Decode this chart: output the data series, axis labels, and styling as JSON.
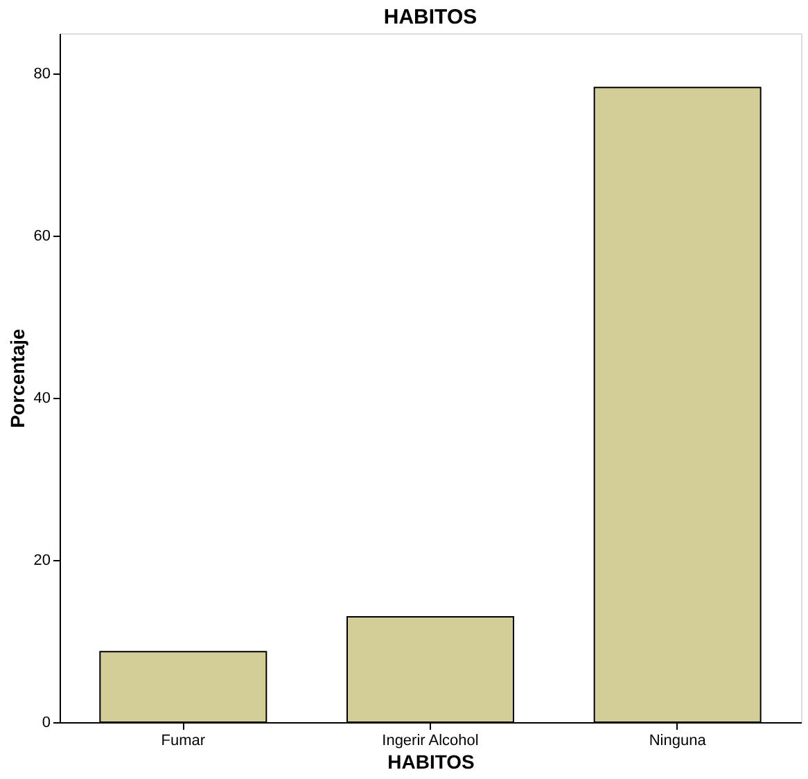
{
  "chart_data": {
    "type": "bar",
    "title": "HABITOS",
    "xlabel": "HABITOS",
    "ylabel": "Porcentaje",
    "categories": [
      "Fumar",
      "Ingerir Alcohol",
      "Ninguna"
    ],
    "values": [
      8.7,
      13.0,
      78.3
    ],
    "color": "#d3ce97",
    "ylim": [
      0,
      85
    ],
    "yticks": [
      0,
      20,
      40,
      60,
      80
    ],
    "grid": false
  }
}
